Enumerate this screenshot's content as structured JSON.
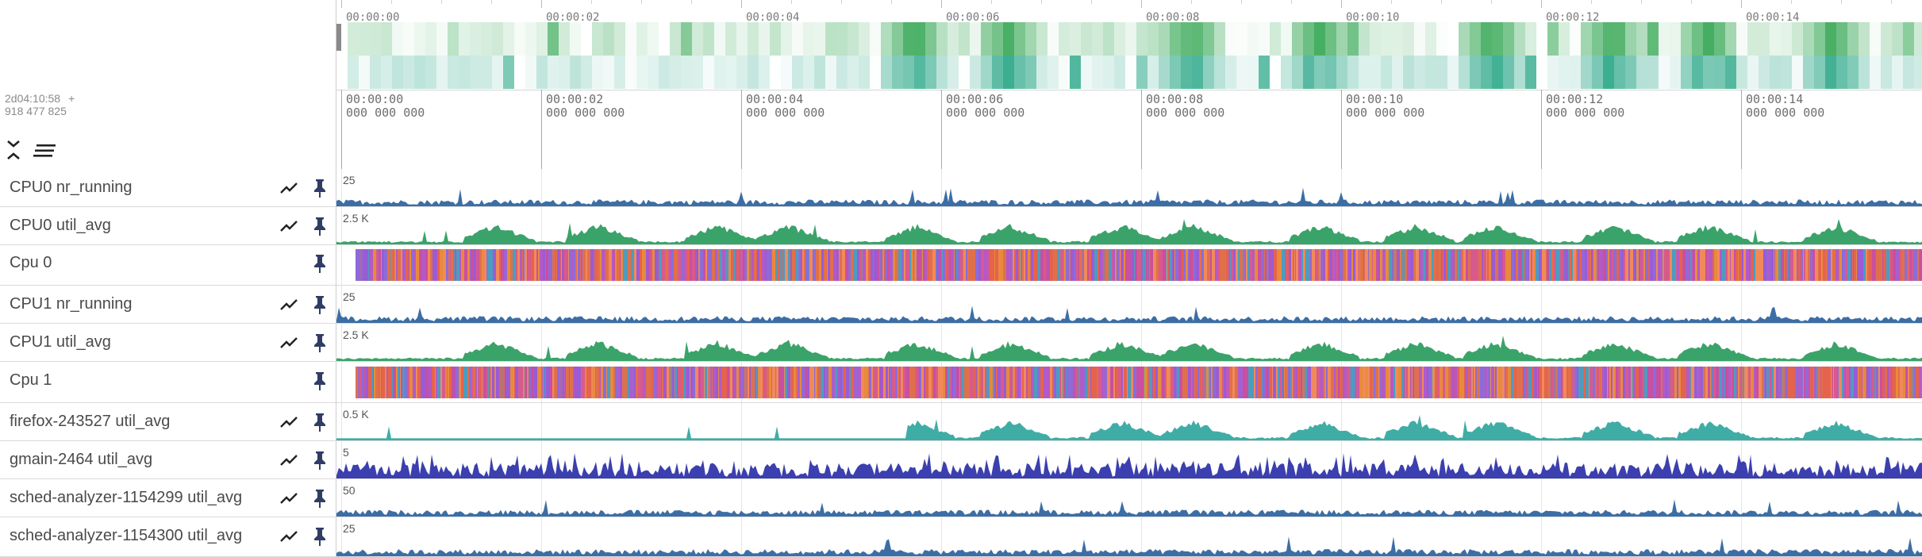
{
  "overview": {
    "ticks": [
      "00:00:00",
      "00:00:02",
      "00:00:04",
      "00:00:06",
      "00:00:08",
      "00:00:10",
      "00:00:12",
      "00:00:14"
    ]
  },
  "header": {
    "time": "2d04:10:58",
    "plus": "+",
    "ns": "918 477 825"
  },
  "ruler": {
    "ticks": [
      {
        "time": "00:00:00",
        "ns": "000 000 000"
      },
      {
        "time": "00:00:02",
        "ns": "000 000 000"
      },
      {
        "time": "00:00:04",
        "ns": "000 000 000"
      },
      {
        "time": "00:00:06",
        "ns": "000 000 000"
      },
      {
        "time": "00:00:08",
        "ns": "000 000 000"
      },
      {
        "time": "00:00:10",
        "ns": "000 000 000"
      },
      {
        "time": "00:00:12",
        "ns": "000 000 000"
      },
      {
        "time": "00:00:14",
        "ns": "000 000 000"
      }
    ]
  },
  "icons": {
    "collapse": "collapse-all-icon",
    "sort": "sort-lines-icon",
    "chart": "line-chart-icon",
    "pin": "pin-icon"
  },
  "colors": {
    "blue": "#3c6ea5",
    "green": "#3aa36a",
    "teal": "#3fada6",
    "indigo": "#3b3faf"
  },
  "tracks": [
    {
      "name": "CPU0 nr_running",
      "scale": "25",
      "kind": "counter",
      "color": "#3c6ea5"
    },
    {
      "name": "CPU0 util_avg",
      "scale": "2.5 K",
      "kind": "counter",
      "color": "#3aa36a"
    },
    {
      "name": "Cpu 0",
      "scale": "",
      "kind": "cpu",
      "color": "#e0704a"
    },
    {
      "name": "CPU1 nr_running",
      "scale": "25",
      "kind": "counter",
      "color": "#3c6ea5"
    },
    {
      "name": "CPU1 util_avg",
      "scale": "2.5 K",
      "kind": "counter",
      "color": "#3aa36a"
    },
    {
      "name": "Cpu 1",
      "scale": "",
      "kind": "cpu",
      "color": "#e0704a"
    },
    {
      "name": "firefox-243527 util_avg",
      "scale": "0.5 K",
      "kind": "counter",
      "color": "#3fada6"
    },
    {
      "name": "gmain-2464 util_avg",
      "scale": "5",
      "kind": "counter",
      "color": "#3b3faf"
    },
    {
      "name": "sched-analyzer-1154299 util_avg",
      "scale": "50",
      "kind": "counter",
      "color": "#3c6ea5"
    },
    {
      "name": "sched-analyzer-1154300 util_avg",
      "scale": "25",
      "kind": "counter",
      "color": "#3c6ea5"
    }
  ]
}
